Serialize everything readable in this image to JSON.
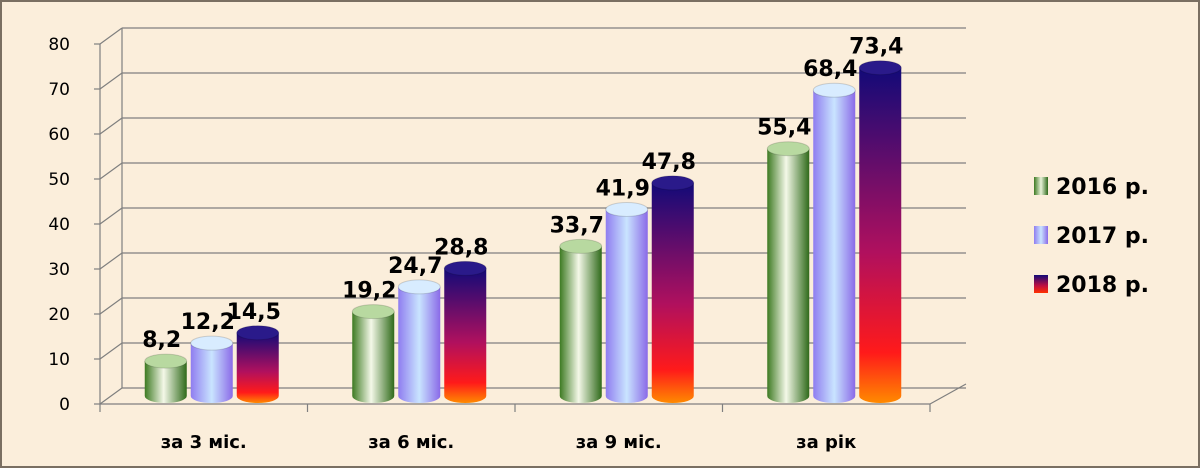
{
  "chart_data": {
    "type": "bar",
    "categories": [
      "за 3 міс.",
      "за 6 міс.",
      "за 9 міс.",
      "за рік"
    ],
    "series": [
      {
        "name": "2016 р.",
        "values": [
          8.2,
          19.2,
          33.7,
          55.4
        ],
        "labels": [
          "8,2",
          "19,2",
          "33,7",
          "55,4"
        ],
        "color": "#4f8a2e"
      },
      {
        "name": "2017 р.",
        "values": [
          12.2,
          24.7,
          41.9,
          68.4
        ],
        "labels": [
          "12,2",
          "24,7",
          "41,9",
          "68,4"
        ],
        "color": "#9a8cf0"
      },
      {
        "name": "2018 р.",
        "values": [
          14.5,
          28.8,
          47.8,
          73.4
        ],
        "labels": [
          "14,5",
          "28,8",
          "47,8",
          "73,4"
        ],
        "color": "#1a0a7a"
      }
    ],
    "yticks": [
      "0",
      "10",
      "20",
      "30",
      "40",
      "50",
      "60",
      "70",
      "80"
    ],
    "ylim": [
      0,
      80
    ],
    "grid": true,
    "legend": "right",
    "title": "",
    "xlabel": "",
    "ylabel": ""
  }
}
